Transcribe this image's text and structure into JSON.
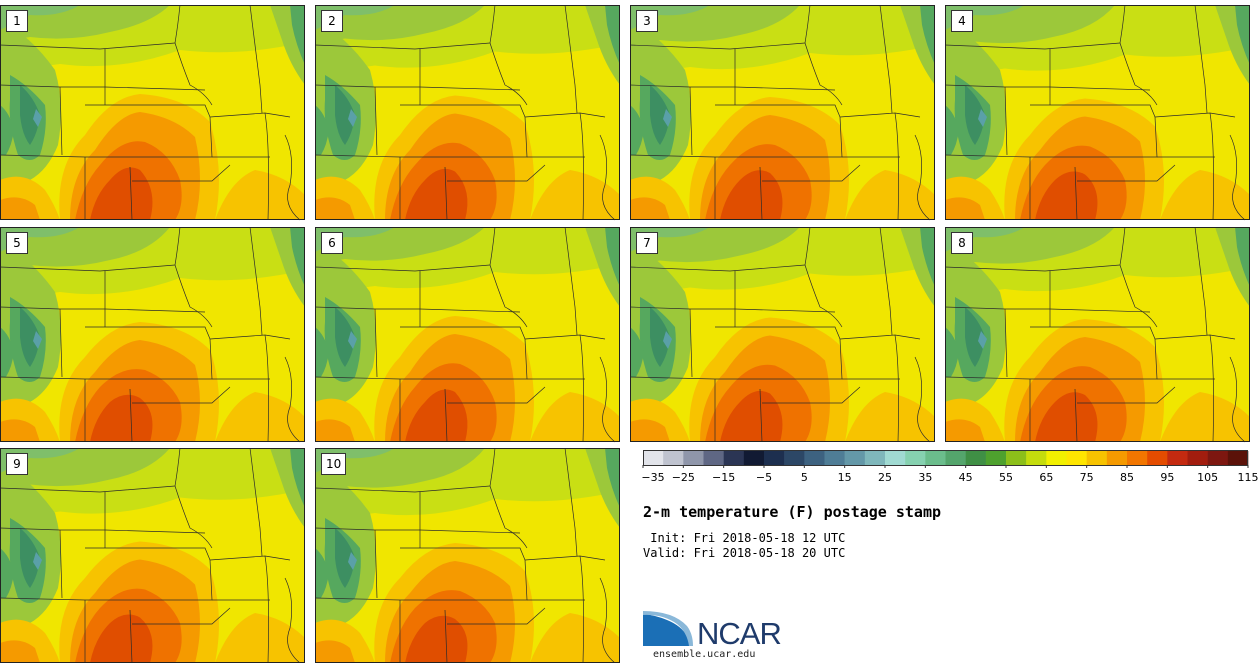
{
  "title": "2-m temperature (F) postage stamp",
  "init": " Init: Fri 2018-05-18 12 UTC",
  "valid": "Valid: Fri 2018-05-18 20 UTC",
  "url": "ensemble.ucar.edu",
  "logo_text": "NCAR",
  "members": [
    "1",
    "2",
    "3",
    "4",
    "5",
    "6",
    "7",
    "8",
    "9",
    "10"
  ],
  "colorbar": {
    "min": -35,
    "max": 120,
    "step": 5,
    "tick_labels": [
      "−35",
      "−25",
      "−15",
      "−5",
      "5",
      "15",
      "25",
      "35",
      "45",
      "55",
      "65",
      "75",
      "85",
      "95",
      "105",
      "115"
    ],
    "colors": [
      "#e2e4ea",
      "#bfc3cf",
      "#8f96aa",
      "#5f6784",
      "#2b3554",
      "#111a33",
      "#1d2f4f",
      "#2c4766",
      "#3d6280",
      "#4f7d96",
      "#6498a8",
      "#7fb7bb",
      "#a0dad2",
      "#86d1b0",
      "#6bbd8c",
      "#54a56c",
      "#3f8f45",
      "#4ea12e",
      "#8cbf1a",
      "#c4dc0d",
      "#f2f000",
      "#ffe600",
      "#f7c300",
      "#f59a00",
      "#f27600",
      "#e44c00",
      "#c42a10",
      "#a21d0e",
      "#7d1710",
      "#5b1209"
    ]
  },
  "map_palette": {
    "state_line": "#2b2b2b",
    "mountain_dark": "#3d8f62",
    "mountain_mid": "#56a85e",
    "mountain_light": "#7fbf6a",
    "cool_green": "#9cc83a",
    "lime": "#c9df14",
    "yellow": "#f0e600",
    "gold": "#f7c300",
    "orange": "#f59a00",
    "deep_orange": "#ef7200",
    "red_orange": "#e04e00",
    "lake": "#5aa0a8"
  }
}
